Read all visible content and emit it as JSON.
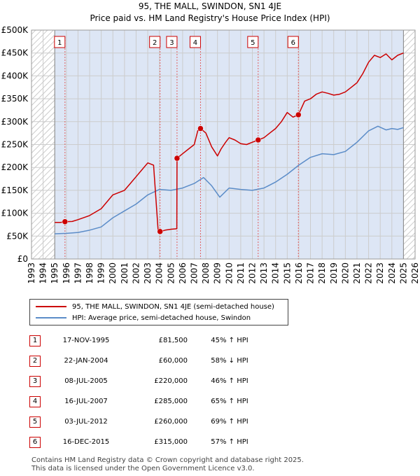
{
  "title_line1": "95, THE MALL, SWINDON, SN1 4JE",
  "title_line2": "Price paid vs. HM Land Registry's House Price Index (HPI)",
  "colors": {
    "property": "#cc0000",
    "hpi": "#5b8cc8",
    "shade": "#dde6f5",
    "grid": "#cccccc",
    "marker_line": "#e06060"
  },
  "legend": {
    "property_label": "95, THE MALL, SWINDON, SN1 4JE (semi-detached house)",
    "hpi_label": "HPI: Average price, semi-detached house, Swindon"
  },
  "sales": [
    {
      "n": "1",
      "date": "17-NOV-1995",
      "price": "£81,500",
      "hpi": "45% ↑ HPI"
    },
    {
      "n": "2",
      "date": "22-JAN-2004",
      "price": "£60,000",
      "hpi": "58% ↓ HPI"
    },
    {
      "n": "3",
      "date": "08-JUL-2005",
      "price": "£220,000",
      "hpi": "46% ↑ HPI"
    },
    {
      "n": "4",
      "date": "16-JUL-2007",
      "price": "£285,000",
      "hpi": "65% ↑ HPI"
    },
    {
      "n": "5",
      "date": "03-JUL-2012",
      "price": "£260,000",
      "hpi": "69% ↑ HPI"
    },
    {
      "n": "6",
      "date": "16-DEC-2015",
      "price": "£315,000",
      "hpi": "57% ↑ HPI"
    }
  ],
  "footer_line1": "Contains HM Land Registry data © Crown copyright and database right 2025.",
  "footer_line2": "This data is licensed under the Open Government Licence v3.0.",
  "chart_data": {
    "type": "line",
    "xlim": [
      1993,
      2026
    ],
    "ylim": [
      0,
      500000
    ],
    "x_ticks": [
      1993,
      1994,
      1995,
      1996,
      1997,
      1998,
      1999,
      2000,
      2001,
      2002,
      2003,
      2004,
      2005,
      2006,
      2007,
      2008,
      2009,
      2010,
      2011,
      2012,
      2013,
      2014,
      2015,
      2016,
      2017,
      2018,
      2019,
      2020,
      2021,
      2022,
      2023,
      2024,
      2025,
      2026
    ],
    "y_ticks": [
      0,
      50000,
      100000,
      150000,
      200000,
      250000,
      300000,
      350000,
      400000,
      450000,
      500000
    ],
    "y_tick_labels": [
      "£0",
      "£50K",
      "£100K",
      "£150K",
      "£200K",
      "£250K",
      "£300K",
      "£350K",
      "£400K",
      "£450K",
      "£500K"
    ],
    "hatched_ranges": [
      [
        1993,
        1995.0
      ],
      [
        2025.0,
        2026
      ]
    ],
    "data_shade_range": [
      1995.0,
      2025.0
    ],
    "sale_markers": [
      {
        "label": "1",
        "x": 1995.88,
        "y": 81500
      },
      {
        "label": "2",
        "x": 2004.06,
        "y": 60000
      },
      {
        "label": "3",
        "x": 2005.52,
        "y": 220000
      },
      {
        "label": "4",
        "x": 2007.54,
        "y": 285000
      },
      {
        "label": "5",
        "x": 2012.5,
        "y": 260000
      },
      {
        "label": "6",
        "x": 2015.96,
        "y": 315000
      }
    ],
    "series": [
      {
        "name": "95, THE MALL, SWINDON, SN1 4JE (semi-detached house)",
        "x": [
          1995.0,
          1995.5,
          1995.88,
          1996.5,
          1997,
          1998,
          1999,
          2000,
          2001,
          2001.5,
          2002,
          2002.5,
          2003,
          2003.5,
          2003.9,
          2004.06,
          2004.5,
          2005,
          2005.5,
          2005.52,
          2006,
          2006.5,
          2007,
          2007.3,
          2007.54,
          2008,
          2008.5,
          2009,
          2009.3,
          2009.7,
          2010,
          2010.5,
          2011,
          2011.5,
          2012,
          2012.5,
          2013,
          2013.5,
          2014,
          2014.5,
          2015,
          2015.5,
          2015.96,
          2016.5,
          2017,
          2017.5,
          2018,
          2018.5,
          2019,
          2019.5,
          2020,
          2020.5,
          2021,
          2021.5,
          2022,
          2022.5,
          2023,
          2023.5,
          2024,
          2024.5,
          2025
        ],
        "y": [
          80000,
          80000,
          81500,
          82000,
          86000,
          95000,
          110000,
          140000,
          150000,
          165000,
          180000,
          195000,
          210000,
          205000,
          60000,
          60000,
          63000,
          65000,
          66000,
          220000,
          230000,
          240000,
          250000,
          280000,
          285000,
          275000,
          245000,
          225000,
          240000,
          255000,
          265000,
          260000,
          252000,
          250000,
          255000,
          260000,
          265000,
          275000,
          285000,
          300000,
          320000,
          310000,
          315000,
          345000,
          350000,
          360000,
          365000,
          362000,
          358000,
          360000,
          365000,
          375000,
          385000,
          405000,
          430000,
          445000,
          440000,
          448000,
          435000,
          445000,
          450000
        ]
      },
      {
        "name": "HPI: Average price, semi-detached house, Swindon",
        "x": [
          1995.0,
          1996,
          1997,
          1998,
          1999,
          2000,
          2001,
          2002,
          2003,
          2004,
          2005,
          2006,
          2007,
          2007.8,
          2008.5,
          2009.2,
          2010,
          2011,
          2012,
          2013,
          2014,
          2015,
          2016,
          2017,
          2018,
          2019,
          2020,
          2021,
          2022,
          2022.8,
          2023.5,
          2024,
          2024.5,
          2025
        ],
        "y": [
          55000,
          56000,
          58000,
          63000,
          70000,
          90000,
          105000,
          120000,
          140000,
          152000,
          150000,
          155000,
          165000,
          178000,
          160000,
          135000,
          155000,
          152000,
          150000,
          155000,
          168000,
          185000,
          205000,
          222000,
          230000,
          228000,
          235000,
          255000,
          280000,
          290000,
          282000,
          285000,
          283000,
          287000
        ]
      }
    ]
  }
}
